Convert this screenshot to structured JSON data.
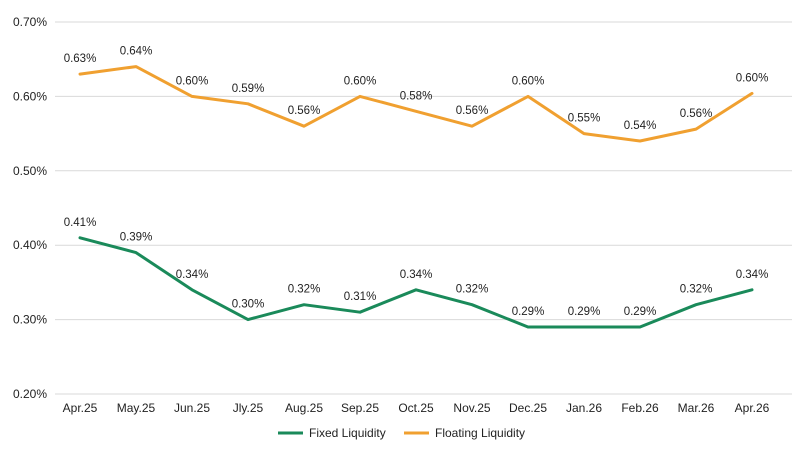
{
  "chart_data": {
    "type": "line",
    "title": "",
    "xlabel": "",
    "ylabel": "",
    "categories": [
      "Apr.25",
      "May.25",
      "Jun.25",
      "Jly.25",
      "Aug.25",
      "Sep.25",
      "Oct.25",
      "Nov.25",
      "Dec.25",
      "Jan.26",
      "Feb.26",
      "Mar.26",
      "Apr.26"
    ],
    "ylim": [
      0.2,
      0.7
    ],
    "yticks": [
      0.2,
      0.3,
      0.4,
      0.5,
      0.6,
      0.7
    ],
    "ytick_labels": [
      "0.20%",
      "0.30%",
      "0.40%",
      "0.50%",
      "0.60%",
      "0.70%"
    ],
    "grid": true,
    "legend_position": "bottom",
    "series": [
      {
        "name": "Fixed Liquidity",
        "color": "#1a8a5a",
        "values": [
          0.41,
          0.39,
          0.34,
          0.3,
          0.32,
          0.31,
          0.34,
          0.32,
          0.29,
          0.29,
          0.29,
          0.32,
          0.34
        ],
        "labels": [
          "0.41%",
          "0.39%",
          "0.34%",
          "0.30%",
          "0.32%",
          "0.31%",
          "0.34%",
          "0.32%",
          "0.29%",
          "0.29%",
          "0.29%",
          "0.32%",
          "0.34%"
        ]
      },
      {
        "name": "Floating Liquidity",
        "color": "#f0a030",
        "values": [
          0.63,
          0.64,
          0.6,
          0.59,
          0.56,
          0.6,
          0.58,
          0.56,
          0.6,
          0.55,
          0.54,
          0.556,
          0.604
        ],
        "labels": [
          "0.63%",
          "0.64%",
          "0.60%",
          "0.59%",
          "0.56%",
          "0.60%",
          "0.58%",
          "0.56%",
          "0.60%",
          "0.55%",
          "0.54%",
          "0.56%",
          "0.60%"
        ]
      }
    ]
  }
}
